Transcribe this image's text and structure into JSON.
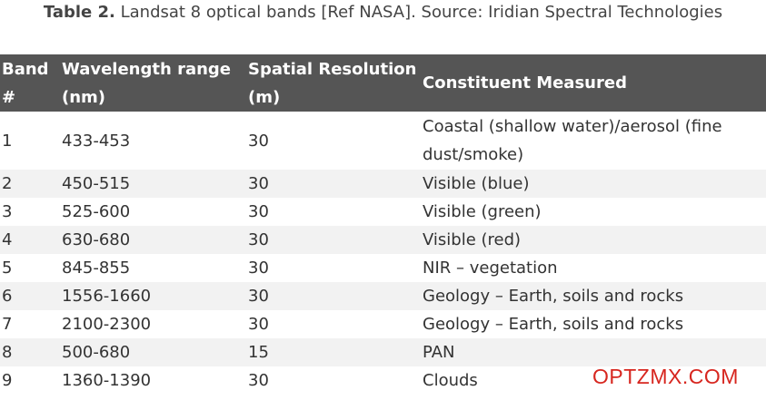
{
  "caption": {
    "label": "Table 2.",
    "text": " Landsat 8 optical bands [Ref NASA]. Source: Iridian Spectral Technologies"
  },
  "table": {
    "headers": [
      "Band #",
      "Wavelength range (nm)",
      "Spatial Resolution (m)",
      "Constituent Measured"
    ],
    "rows": [
      [
        "1",
        "433-453",
        "30",
        "Coastal (shallow water)/aerosol (fine dust/smoke)"
      ],
      [
        "2",
        "450-515",
        "30",
        "Visible (blue)"
      ],
      [
        "3",
        "525-600",
        "30",
        "Visible (green)"
      ],
      [
        "4",
        "630-680",
        "30",
        "Visible (red)"
      ],
      [
        "5",
        "845-855",
        "30",
        "NIR – vegetation"
      ],
      [
        "6",
        "1556-1660",
        "30",
        "Geology – Earth, soils and rocks"
      ],
      [
        "7",
        "2100-2300",
        "30",
        "Geology – Earth, soils and rocks"
      ],
      [
        "8",
        "500-680",
        "15",
        "PAN"
      ],
      [
        "9",
        "1360-1390",
        "30",
        "Clouds"
      ]
    ]
  },
  "watermark": "OPTZMX.COM",
  "colors": {
    "header_bg": "#555555",
    "header_text": "#ffffff",
    "row_alt_bg": "#f2f2f2",
    "watermark": "#d7261f"
  }
}
